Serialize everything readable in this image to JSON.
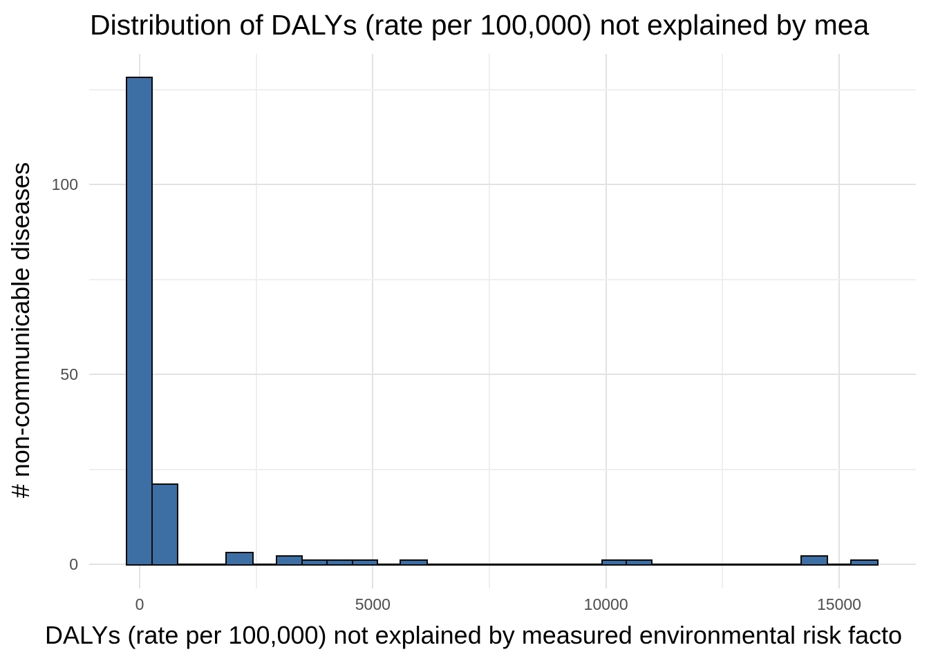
{
  "chart_data": {
    "type": "histogram",
    "title": "Distribution of DALYs (rate per 100,000) not explained by mea",
    "xlabel": "DALYs (rate per 100,000) not explained by measured environmental risk facto",
    "ylabel": "# non-communicable diseases",
    "x_ticks": [
      {
        "value": 0,
        "label": "0"
      },
      {
        "value": 5000,
        "label": "5000"
      },
      {
        "value": 10000,
        "label": "10000"
      },
      {
        "value": 15000,
        "label": "15000"
      }
    ],
    "y_ticks": [
      {
        "value": 0,
        "label": "0"
      },
      {
        "value": 50,
        "label": "50"
      },
      {
        "value": 100,
        "label": "100"
      }
    ],
    "x_minor_gridlines": [
      2500,
      7500,
      12500
    ],
    "y_minor_gridlines": [
      25,
      75,
      125
    ],
    "grid": "on",
    "legend": "none",
    "bin_width_approx": 550,
    "bars": [
      {
        "x0": -280,
        "x1": 270,
        "count": 128
      },
      {
        "x0": 270,
        "x1": 820,
        "count": 21
      },
      {
        "x0": 1850,
        "x1": 2430,
        "count": 3
      },
      {
        "x0": 2940,
        "x1": 3480,
        "count": 2
      },
      {
        "x0": 3480,
        "x1": 4010,
        "count": 1
      },
      {
        "x0": 4010,
        "x1": 4560,
        "count": 1
      },
      {
        "x0": 4560,
        "x1": 5100,
        "count": 1
      },
      {
        "x0": 5590,
        "x1": 6170,
        "count": 1
      },
      {
        "x0": 9910,
        "x1": 10440,
        "count": 1
      },
      {
        "x0": 10440,
        "x1": 10990,
        "count": 1
      },
      {
        "x0": 14190,
        "x1": 14750,
        "count": 2
      },
      {
        "x0": 15250,
        "x1": 15830,
        "count": 1
      }
    ],
    "zero_baseline": {
      "x0": -280,
      "x1": 15830
    },
    "colors": {
      "bar_fill": "#3D6FA5",
      "bar_stroke": "#0a0a0a",
      "grid_major": "#e2e2e2",
      "grid_minor": "#efefef",
      "tick_label": "#4d4d4d",
      "title_text": "#000000"
    }
  }
}
